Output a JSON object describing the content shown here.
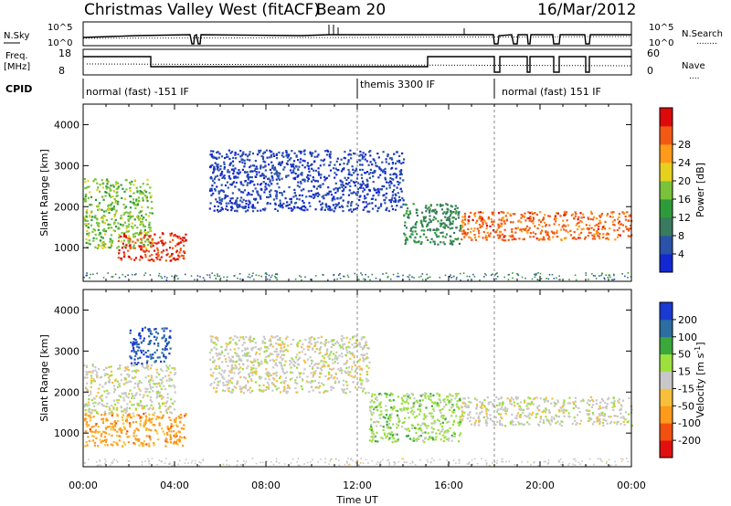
{
  "header": {
    "station": "Christmas Valley West (fitACF)",
    "beam": "Beam 20",
    "date": "16/Mar/2012"
  },
  "noise_panel": {
    "left_label": "N.Sky",
    "left_ticks": [
      "10^5",
      "10^0"
    ],
    "right_label": "N.Search",
    "right_ticks": [
      "10^5",
      "10^0"
    ],
    "right_legend": "........"
  },
  "freq_panel": {
    "left_label_line1": "Freq.",
    "left_label_line2": "[MHz]",
    "left_ticks": [
      "18",
      "8"
    ],
    "right_label": "Nave",
    "right_ticks": [
      "60",
      "0"
    ],
    "right_legend": "...."
  },
  "cpid": {
    "label": "CPID",
    "modes": [
      {
        "name": "normal (fast) -151 IF",
        "start_hour": 0,
        "end_hour": 12
      },
      {
        "name": "themis 3300 IF",
        "start_hour": 12,
        "end_hour": 18
      },
      {
        "name": "normal (fast) 151 IF",
        "start_hour": 18,
        "end_hour": 24
      }
    ]
  },
  "x_axis": {
    "title": "Time UT",
    "ticks": [
      "00:00",
      "04:00",
      "08:00",
      "12:00",
      "16:00",
      "20:00",
      "00:00"
    ]
  },
  "y_axis": {
    "title": "Slant Range [km]",
    "ticks": [
      "1000",
      "2000",
      "3000",
      "4000"
    ]
  },
  "colors": {
    "power": [
      "#1428d2",
      "#2a52a8",
      "#3a7a5e",
      "#2e9a3a",
      "#79c23a",
      "#e6d01e",
      "#ff9a1a",
      "#f25a14",
      "#dc0a0a"
    ],
    "velocity": [
      "#e01010",
      "#f2500e",
      "#ff9a1a",
      "#f7c03a",
      "#c8c8c8",
      "#9be03c",
      "#3aa83a",
      "#2c6ea0",
      "#1a3ad2"
    ]
  },
  "chart_data": [
    {
      "type": "heatmap",
      "title": "Power",
      "xlabel": "Time UT",
      "ylabel": "Slant Range [km]",
      "xlim": [
        0,
        24
      ],
      "ylim": [
        180,
        4500
      ],
      "colorbar": {
        "label": "Power [dB]",
        "ticks": [
          "4",
          "8",
          "12",
          "16",
          "20",
          "24",
          "28"
        ],
        "range": [
          0,
          32
        ]
      },
      "features": [
        {
          "t0": 0.0,
          "t1": 3.0,
          "r0": 1000,
          "r1": 2700,
          "value": 16
        },
        {
          "t0": 1.5,
          "t1": 4.5,
          "r0": 700,
          "r1": 1400,
          "value": 28
        },
        {
          "t0": 5.5,
          "t1": 14.0,
          "r0": 1900,
          "r1": 3400,
          "value": 4
        },
        {
          "t0": 14.0,
          "t1": 16.5,
          "r0": 1100,
          "r1": 2100,
          "value": 10
        },
        {
          "t0": 16.5,
          "t1": 24.0,
          "r0": 1200,
          "r1": 1900,
          "value": 26
        }
      ]
    },
    {
      "type": "heatmap",
      "title": "Velocity",
      "xlabel": "Time UT",
      "ylabel": "Slant Range [km]",
      "xlim": [
        0,
        24
      ],
      "ylim": [
        180,
        4500
      ],
      "colorbar": {
        "label": "Velocity [m s^-1]",
        "ticks": [
          "-200",
          "-100",
          "-50",
          "-15",
          "15",
          "50",
          "100",
          "200"
        ],
        "range": [
          -250,
          250
        ]
      },
      "features": [
        {
          "t0": 0.0,
          "t1": 4.5,
          "r0": 700,
          "r1": 1500,
          "value": -100
        },
        {
          "t0": 0.0,
          "t1": 4.0,
          "r0": 1500,
          "r1": 2700,
          "value": 0
        },
        {
          "t0": 2.0,
          "t1": 3.8,
          "r0": 2700,
          "r1": 3600,
          "value": 200
        },
        {
          "t0": 5.5,
          "t1": 12.5,
          "r0": 2000,
          "r1": 3400,
          "value": 0
        },
        {
          "t0": 12.5,
          "t1": 16.5,
          "r0": 800,
          "r1": 2000,
          "value": 50
        },
        {
          "t0": 16.5,
          "t1": 24.0,
          "r0": 1200,
          "r1": 1900,
          "value": 0
        }
      ]
    }
  ]
}
